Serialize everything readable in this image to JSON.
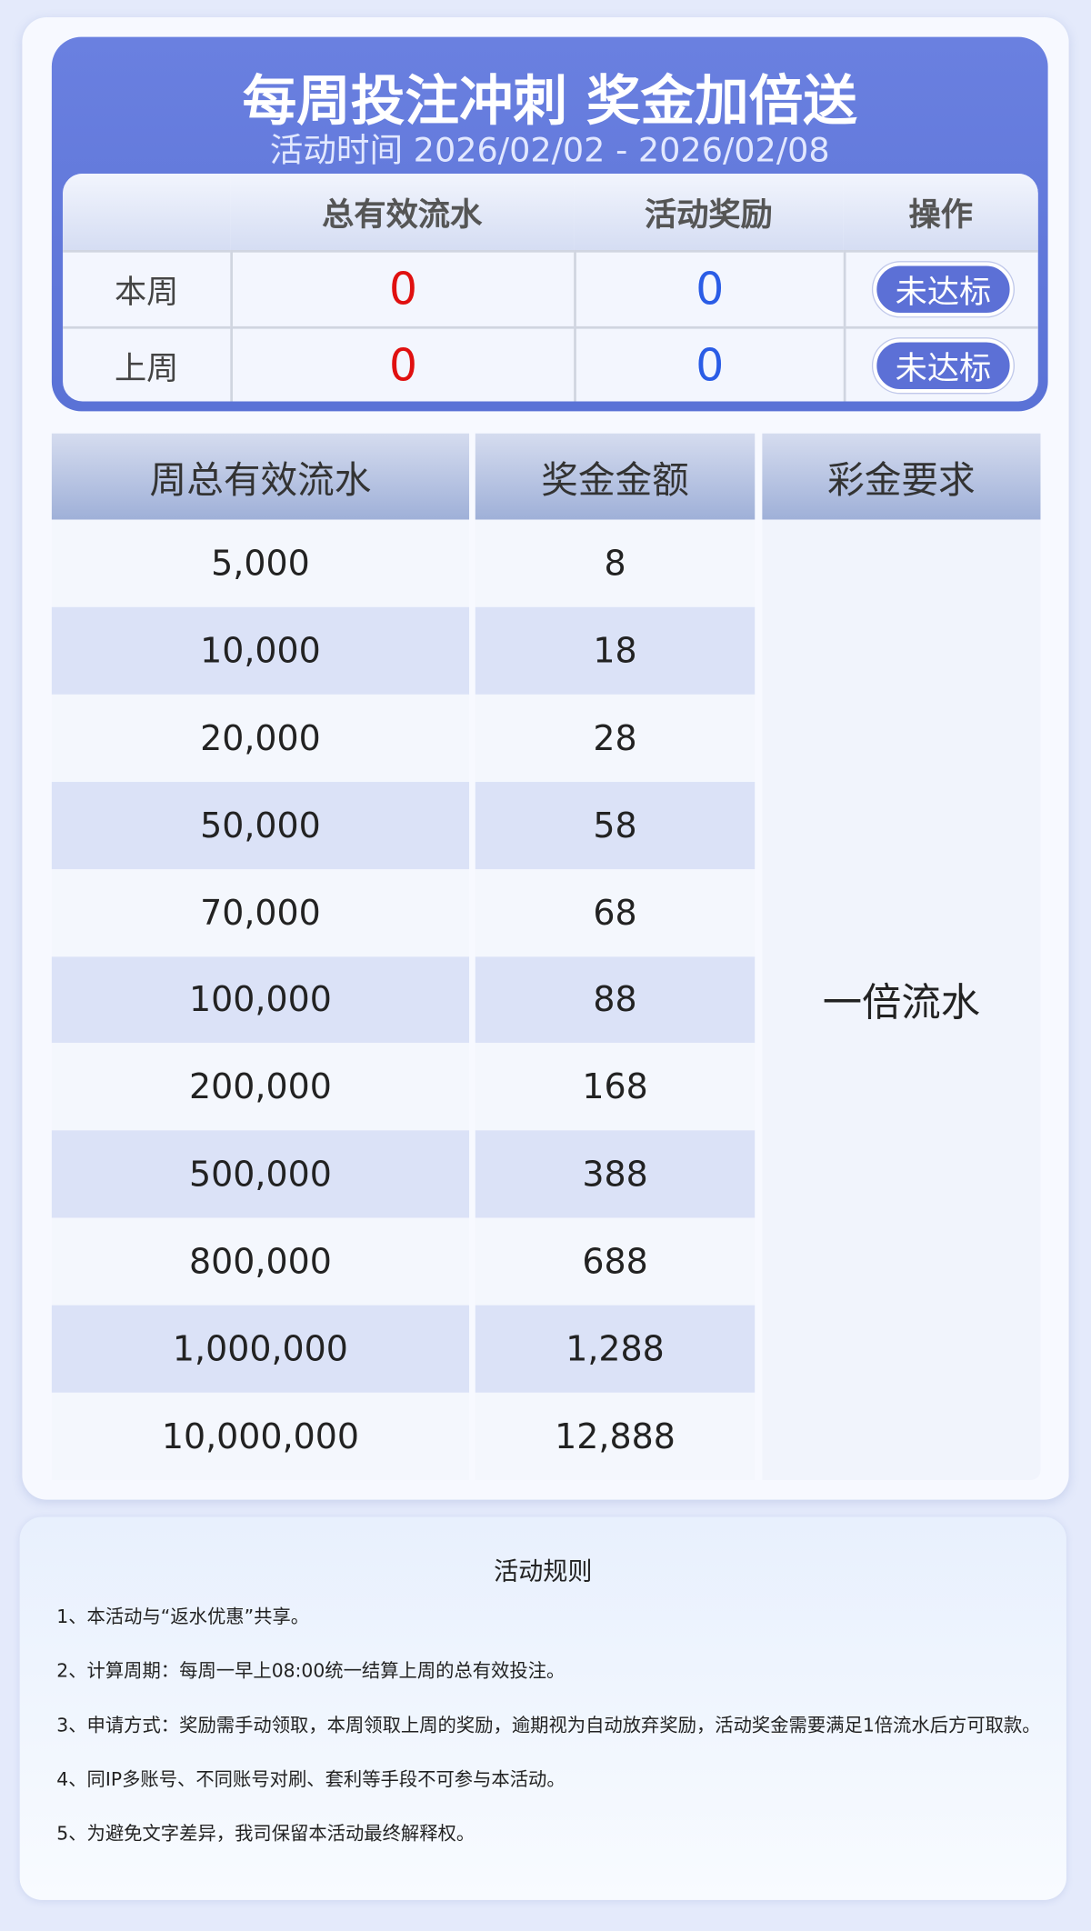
{
  "header": {
    "title": "每周投注冲刺 奖金加倍送",
    "period": "活动时间 2026/02/02 - 2026/02/08"
  },
  "status_table": {
    "columns": [
      "总有效流水",
      "活动奖励",
      "操作"
    ],
    "rows": [
      {
        "label": "本周",
        "turnover": 0,
        "reward": 0,
        "action": "未达标"
      },
      {
        "label": "上周",
        "turnover": 0,
        "reward": 0,
        "action": "未达标"
      }
    ]
  },
  "reward_table": {
    "columns": [
      "周总有效流水",
      "奖金金额",
      "彩金要求"
    ],
    "rows": [
      [
        "5,000",
        "8"
      ],
      [
        "10,000",
        "18"
      ],
      [
        "20,000",
        "28"
      ],
      [
        "50,000",
        "58"
      ],
      [
        "70,000",
        "68"
      ],
      [
        "100,000",
        "88"
      ],
      [
        "200,000",
        "168"
      ],
      [
        "500,000",
        "388"
      ],
      [
        "800,000",
        "688"
      ],
      [
        "1,000,000",
        "1,288"
      ],
      [
        "10,000,000",
        "12,888"
      ]
    ],
    "requirement": "一倍流水"
  },
  "rules": {
    "title": "活动规则",
    "items": [
      "1、本活动与“返水优惠”共享。",
      "2、计算周期：每周一早上08:00统一结算上周的总有效投注。",
      "3、申请方式：奖励需手动领取，本周领取上周的奖励，逾期视为自动放弃奖励，活动奖金需要满足1倍流水后方可取款。",
      "4、同IP多账号、不同账号对刷、套利等手段不可参与本活动。",
      "5、为避免文字差异，我司保留本活动最终解释权。"
    ]
  }
}
